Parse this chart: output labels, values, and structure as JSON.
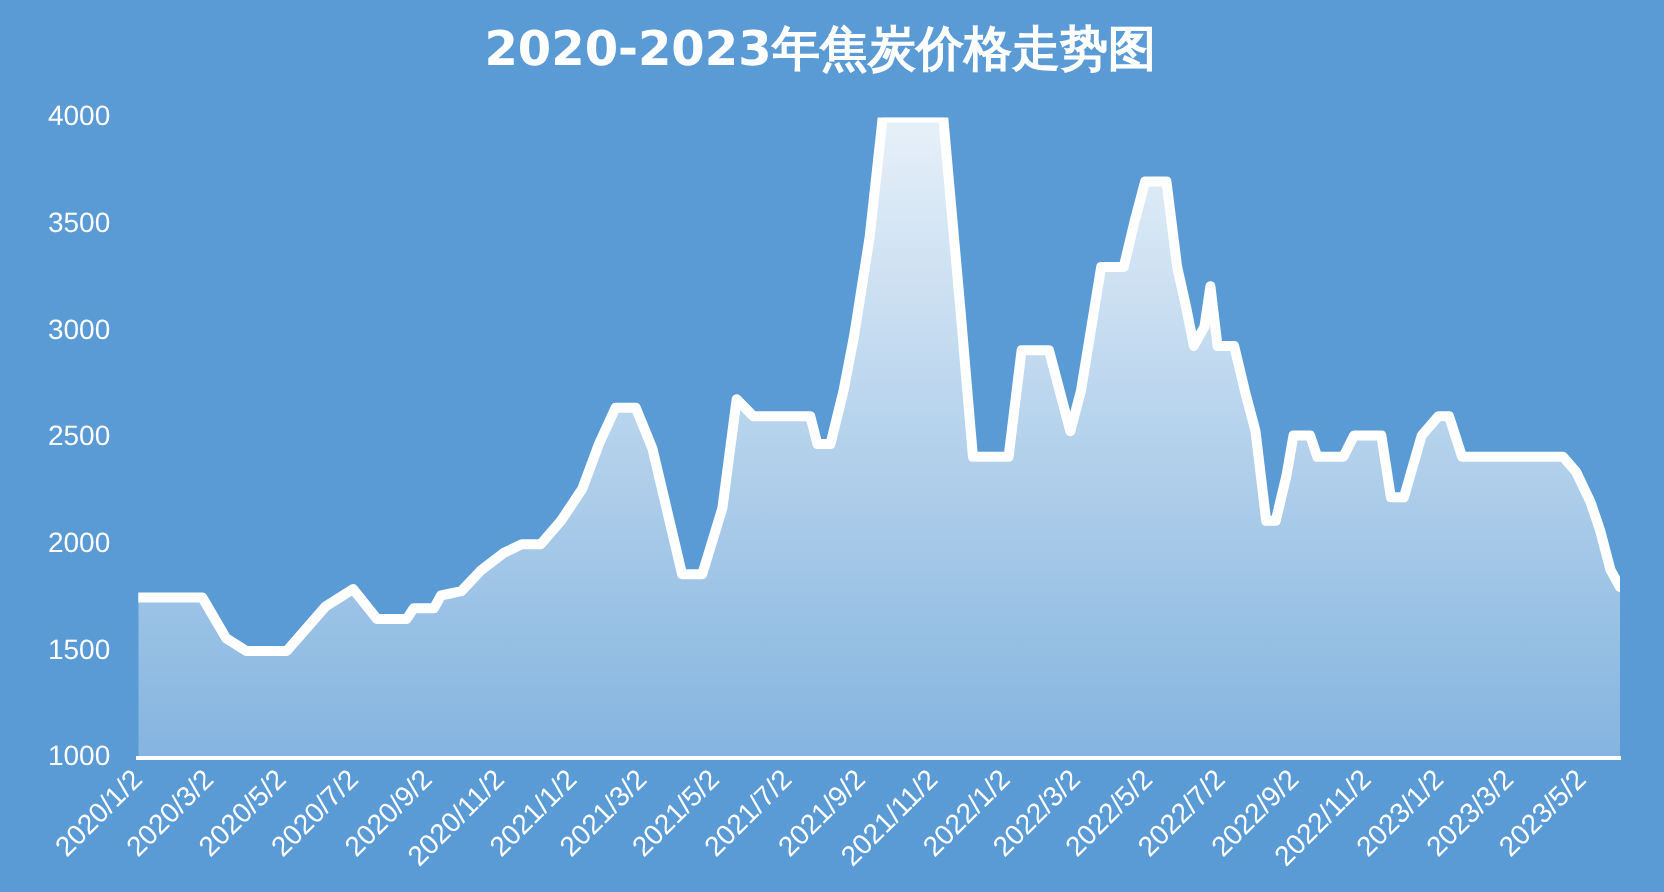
{
  "chart_data": {
    "type": "area",
    "title": "2020-2023年焦炭价格走势图",
    "x": [
      "2020-01-02",
      "2020-02-25",
      "2020-03-16",
      "2020-04-02",
      "2020-05-06",
      "2020-06-08",
      "2020-07-01",
      "2020-07-21",
      "2020-08-15",
      "2020-08-21",
      "2020-09-07",
      "2020-09-13",
      "2020-09-30",
      "2020-10-17",
      "2020-11-05",
      "2020-11-20",
      "2020-12-06",
      "2020-12-23",
      "2021-01-10",
      "2021-01-24",
      "2021-02-07",
      "2021-02-24",
      "2021-03-10",
      "2021-04-04",
      "2021-04-21",
      "2021-05-08",
      "2021-05-20",
      "2021-06-03",
      "2021-07-21",
      "2021-07-27",
      "2021-08-07",
      "2021-08-18",
      "2021-08-27",
      "2021-09-09",
      "2021-09-20",
      "2021-11-10",
      "2021-11-24",
      "2021-12-05",
      "2022-01-04",
      "2022-01-15",
      "2022-02-07",
      "2022-02-25",
      "2022-03-06",
      "2022-03-23",
      "2022-04-11",
      "2022-04-20",
      "2022-04-29",
      "2022-05-17",
      "2022-05-26",
      "2022-06-03",
      "2022-06-09",
      "2022-06-18",
      "2022-06-23",
      "2022-06-29",
      "2022-07-13",
      "2022-07-22",
      "2022-07-31",
      "2022-08-09",
      "2022-08-17",
      "2022-08-26",
      "2022-09-01",
      "2022-09-15",
      "2022-09-21",
      "2022-10-13",
      "2022-10-22",
      "2022-11-14",
      "2022-11-22",
      "2022-12-03",
      "2022-12-18",
      "2023-01-01",
      "2023-01-10",
      "2023-01-21",
      "2023-04-16",
      "2023-04-27",
      "2023-05-09",
      "2023-05-17",
      "2023-05-26",
      "2023-06-03"
    ],
    "series": [
      {
        "color": "#ffffff",
        "values": [
          1750,
          1750,
          1560,
          1500,
          1500,
          1710,
          1790,
          1650,
          1650,
          1700,
          1700,
          1760,
          1780,
          1880,
          1960,
          2000,
          2000,
          2110,
          2260,
          2470,
          2640,
          2640,
          2450,
          1860,
          1860,
          2170,
          2680,
          2600,
          2600,
          2470,
          2470,
          2720,
          2980,
          3440,
          4000,
          4000,
          3130,
          2410,
          2410,
          2910,
          2910,
          2530,
          2720,
          3300,
          3300,
          3510,
          3700,
          3700,
          3300,
          3100,
          2930,
          3020,
          3210,
          2930,
          2930,
          2720,
          2530,
          2110,
          2110,
          2320,
          2510,
          2510,
          2410,
          2410,
          2510,
          2510,
          2220,
          2220,
          2510,
          2600,
          2600,
          2410,
          2410,
          2340,
          2200,
          2070,
          1880,
          1800
        ]
      }
    ],
    "xlim": [
      "2020-01-02",
      "2023-06-03"
    ],
    "xticks": [
      {
        "value": "2020-01-02",
        "label": "2020/1/2"
      },
      {
        "value": "2020-03-02",
        "label": "2020/3/2"
      },
      {
        "value": "2020-05-02",
        "label": "2020/5/2"
      },
      {
        "value": "2020-07-02",
        "label": "2020/7/2"
      },
      {
        "value": "2020-09-02",
        "label": "2020/9/2"
      },
      {
        "value": "2020-11-02",
        "label": "2020/11/2"
      },
      {
        "value": "2021-01-02",
        "label": "2021/1/2"
      },
      {
        "value": "2021-03-02",
        "label": "2021/3/2"
      },
      {
        "value": "2021-05-02",
        "label": "2021/5/2"
      },
      {
        "value": "2021-07-02",
        "label": "2021/7/2"
      },
      {
        "value": "2021-09-02",
        "label": "2021/9/2"
      },
      {
        "value": "2021-11-02",
        "label": "2021/11/2"
      },
      {
        "value": "2022-01-02",
        "label": "2022/1/2"
      },
      {
        "value": "2022-03-02",
        "label": "2022/3/2"
      },
      {
        "value": "2022-05-02",
        "label": "2022/5/2"
      },
      {
        "value": "2022-07-02",
        "label": "2022/7/2"
      },
      {
        "value": "2022-09-02",
        "label": "2022/9/2"
      },
      {
        "value": "2022-11-02",
        "label": "2022/11/2"
      },
      {
        "value": "2023-01-02",
        "label": "2023/1/2"
      },
      {
        "value": "2023-03-02",
        "label": "2023/3/2"
      },
      {
        "value": "2023-05-02",
        "label": "2023/5/2"
      }
    ],
    "ylim": [
      1000,
      4000
    ],
    "yticks": [
      1000,
      1500,
      2000,
      2500,
      3000,
      3500,
      4000
    ],
    "grid": false,
    "legend": false
  }
}
